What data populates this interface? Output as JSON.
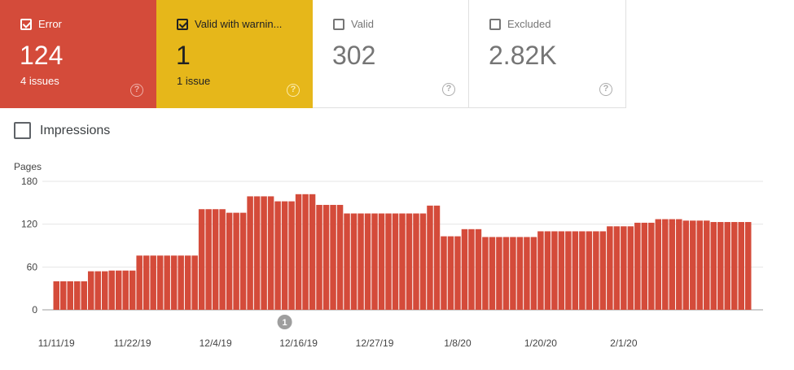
{
  "cards": [
    {
      "key": "error",
      "label": "Error",
      "value": "124",
      "sub": "4 issues",
      "checked": true,
      "color": "#d44b3a"
    },
    {
      "key": "warning",
      "label": "Valid with warnin...",
      "value": "1",
      "sub": "1 issue",
      "checked": true,
      "color": "#e6b71a"
    },
    {
      "key": "valid",
      "label": "Valid",
      "value": "302",
      "sub": "",
      "checked": false,
      "color": "#ffffff"
    },
    {
      "key": "excluded",
      "label": "Excluded",
      "value": "2.82K",
      "sub": "",
      "checked": false,
      "color": "#ffffff"
    }
  ],
  "help_icon": "help-circle-icon",
  "impressions_label": "Impressions",
  "chart_data": {
    "type": "bar",
    "ylabel": "Pages",
    "ylim": [
      0,
      180
    ],
    "yticks": [
      0,
      60,
      120,
      180
    ],
    "bar_color": "#d44b3a",
    "grid": true,
    "xlabels": [
      "11/11/19",
      "11/22/19",
      "12/4/19",
      "12/16/19",
      "12/27/19",
      "1/8/20",
      "1/20/20",
      "2/1/20"
    ],
    "xlabel_positions": [
      0,
      11,
      23,
      35,
      46,
      58,
      70,
      82
    ],
    "annotation": {
      "label": "1",
      "index": 33
    },
    "values": [
      40,
      40,
      40,
      40,
      40,
      54,
      54,
      54,
      55,
      55,
      55,
      55,
      76,
      76,
      76,
      76,
      76,
      76,
      76,
      76,
      76,
      141,
      141,
      141,
      141,
      136,
      136,
      136,
      159,
      159,
      159,
      159,
      152,
      152,
      152,
      162,
      162,
      162,
      147,
      147,
      147,
      147,
      135,
      135,
      135,
      135,
      135,
      135,
      135,
      135,
      135,
      135,
      135,
      135,
      146,
      146,
      103,
      103,
      103,
      113,
      113,
      113,
      102,
      102,
      102,
      102,
      102,
      102,
      102,
      102,
      110,
      110,
      110,
      110,
      110,
      110,
      110,
      110,
      110,
      110,
      117,
      117,
      117,
      117,
      122,
      122,
      122,
      127,
      127,
      127,
      127,
      125,
      125,
      125,
      125,
      123,
      123,
      123,
      123,
      123,
      123
    ]
  }
}
